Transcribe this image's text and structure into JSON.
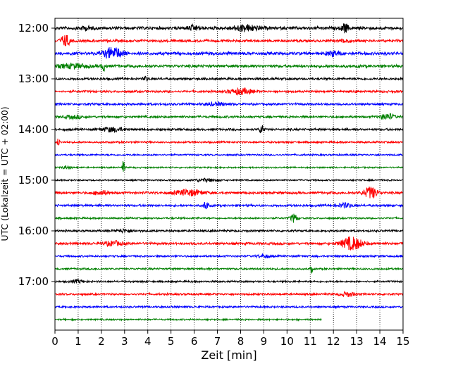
{
  "chart_data": {
    "type": "line",
    "title": "",
    "xlabel": "Zeit  [min]",
    "ylabel": "UTC (Lokalzeit = UTC + 02:00)",
    "xlim": [
      0,
      15
    ],
    "x_ticks": [
      "0",
      "1",
      "2",
      "3",
      "4",
      "5",
      "6",
      "7",
      "8",
      "9",
      "10",
      "11",
      "12",
      "13",
      "14",
      "15"
    ],
    "y_ticks": [
      "12:00",
      "13:00",
      "14:00",
      "15:00",
      "16:00",
      "17:00"
    ],
    "grid": "vertical dotted",
    "traces": [
      {
        "start": "12:00",
        "color": "#000000",
        "end_min": 15,
        "amp": 2.5,
        "events": [
          [
            6,
            0.3,
            3
          ],
          [
            8.2,
            0.6,
            4
          ],
          [
            12.5,
            0.15,
            6
          ],
          [
            1.3,
            0.3,
            2
          ]
        ]
      },
      {
        "start": "12:15",
        "color": "#ff0000",
        "end_min": 15,
        "amp": 2.0,
        "events": [
          [
            0.45,
            0.2,
            8
          ],
          [
            12.5,
            0.2,
            3
          ]
        ]
      },
      {
        "start": "12:30",
        "color": "#0000ff",
        "end_min": 15,
        "amp": 2.5,
        "events": [
          [
            2.5,
            0.4,
            8
          ],
          [
            12.0,
            0.3,
            3
          ]
        ]
      },
      {
        "start": "12:45",
        "color": "#008000",
        "end_min": 15,
        "amp": 2.3,
        "events": [
          [
            2.1,
            0.1,
            6
          ],
          [
            0.8,
            0.6,
            3
          ]
        ]
      },
      {
        "start": "13:00",
        "color": "#000000",
        "end_min": 15,
        "amp": 1.8,
        "events": [
          [
            3.9,
            0.1,
            3
          ]
        ]
      },
      {
        "start": "13:15",
        "color": "#ff0000",
        "end_min": 15,
        "amp": 1.8,
        "events": [
          [
            8.0,
            0.5,
            4
          ]
        ]
      },
      {
        "start": "13:30",
        "color": "#0000ff",
        "end_min": 15,
        "amp": 1.8,
        "events": [
          [
            7.0,
            0.5,
            2
          ]
        ]
      },
      {
        "start": "13:45",
        "color": "#008000",
        "end_min": 15,
        "amp": 1.8,
        "events": [
          [
            14.3,
            0.3,
            4
          ],
          [
            0.8,
            0.4,
            2
          ]
        ]
      },
      {
        "start": "14:00",
        "color": "#000000",
        "end_min": 15,
        "amp": 1.8,
        "events": [
          [
            8.9,
            0.1,
            6
          ],
          [
            2.5,
            0.5,
            3
          ]
        ]
      },
      {
        "start": "14:15",
        "color": "#ff0000",
        "end_min": 15,
        "amp": 1.5,
        "events": [
          [
            0.15,
            0.05,
            6
          ]
        ]
      },
      {
        "start": "14:30",
        "color": "#0000ff",
        "end_min": 15,
        "amp": 1.3,
        "events": []
      },
      {
        "start": "14:45",
        "color": "#008000",
        "end_min": 15,
        "amp": 1.2,
        "events": [
          [
            2.95,
            0.05,
            10
          ],
          [
            0.5,
            0.2,
            2
          ]
        ]
      },
      {
        "start": "15:00",
        "color": "#000000",
        "end_min": 15,
        "amp": 1.2,
        "events": [
          [
            6.5,
            0.5,
            2
          ]
        ]
      },
      {
        "start": "15:15",
        "color": "#ff0000",
        "end_min": 15,
        "amp": 2.0,
        "events": [
          [
            5.8,
            0.6,
            4
          ],
          [
            13.6,
            0.3,
            8
          ],
          [
            2.0,
            0.3,
            3
          ]
        ]
      },
      {
        "start": "15:30",
        "color": "#0000ff",
        "end_min": 15,
        "amp": 1.8,
        "events": [
          [
            6.5,
            0.1,
            6
          ],
          [
            12.5,
            0.3,
            3
          ]
        ]
      },
      {
        "start": "15:45",
        "color": "#008000",
        "end_min": 15,
        "amp": 1.4,
        "events": [
          [
            10.3,
            0.15,
            6
          ]
        ]
      },
      {
        "start": "16:00",
        "color": "#000000",
        "end_min": 15,
        "amp": 1.6,
        "events": [
          [
            3.0,
            0.4,
            2
          ]
        ]
      },
      {
        "start": "16:15",
        "color": "#ff0000",
        "end_min": 15,
        "amp": 2.0,
        "events": [
          [
            12.8,
            0.45,
            9
          ],
          [
            2.5,
            0.4,
            3
          ]
        ]
      },
      {
        "start": "16:30",
        "color": "#0000ff",
        "end_min": 15,
        "amp": 1.5,
        "events": [
          [
            9.0,
            0.3,
            2
          ]
        ]
      },
      {
        "start": "16:45",
        "color": "#008000",
        "end_min": 15,
        "amp": 1.5,
        "events": [
          [
            11.05,
            0.05,
            6
          ]
        ]
      },
      {
        "start": "17:00",
        "color": "#000000",
        "end_min": 15,
        "amp": 1.5,
        "events": [
          [
            1.0,
            0.3,
            2
          ]
        ]
      },
      {
        "start": "17:15",
        "color": "#ff0000",
        "end_min": 15,
        "amp": 1.6,
        "events": [
          [
            12.6,
            0.3,
            3
          ]
        ]
      },
      {
        "start": "17:30",
        "color": "#0000ff",
        "end_min": 15,
        "amp": 1.5,
        "events": []
      },
      {
        "start": "17:45",
        "color": "#008000",
        "end_min": 11.5,
        "amp": 1.3,
        "events": []
      }
    ]
  }
}
